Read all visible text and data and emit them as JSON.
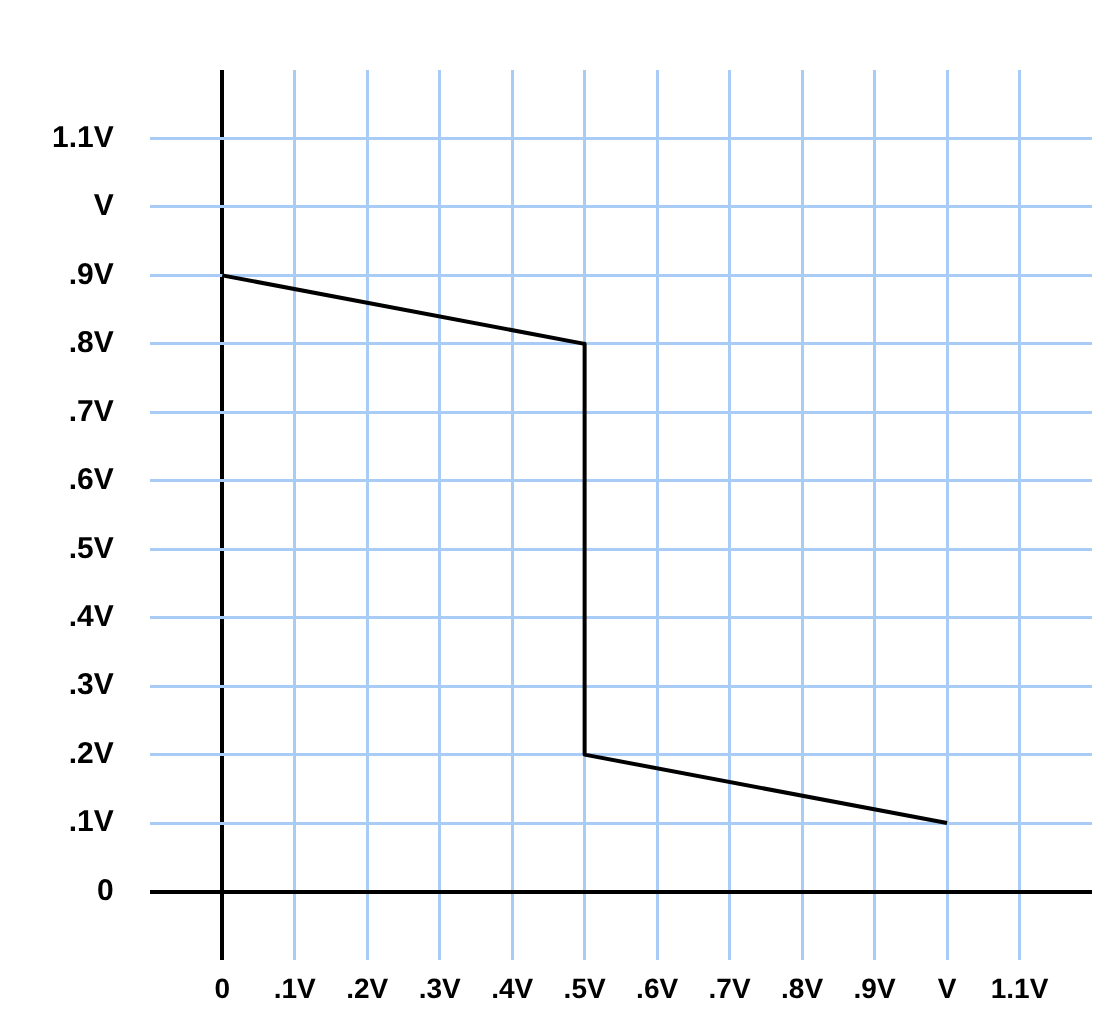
{
  "chart_data": {
    "type": "line",
    "x": [
      0,
      0.5,
      0.5,
      1
    ],
    "series": [
      {
        "color": "#000000",
        "values": [
          0.9,
          0.8,
          0.2,
          0.1
        ]
      }
    ],
    "xlim": [
      -0.1,
      1.2
    ],
    "ylim": [
      -0.1,
      1.2
    ],
    "xticks": [
      0,
      {
        "value": 0.1,
        "label": ".1V"
      },
      {
        "value": 0.2,
        "label": ".2V"
      },
      {
        "value": 0.3,
        "label": ".3V"
      },
      {
        "value": 0.4,
        "label": ".4V"
      },
      {
        "value": 0.5,
        "label": ".5V"
      },
      {
        "value": 0.6,
        "label": ".6V"
      },
      {
        "value": 0.7,
        "label": ".7V"
      },
      {
        "value": 0.8,
        "label": ".8V"
      },
      {
        "value": 0.9,
        "label": ".9V"
      },
      {
        "value": 1,
        "label": "V"
      },
      {
        "value": 1.1,
        "label": "1.1V"
      }
    ],
    "yticks": [
      0,
      {
        "value": 0.1,
        "label": ".1V"
      },
      {
        "value": 0.2,
        "label": ".2V"
      },
      {
        "value": 0.3,
        "label": ".3V"
      },
      {
        "value": 0.4,
        "label": ".4V"
      },
      {
        "value": 0.5,
        "label": ".5V"
      },
      {
        "value": 0.6,
        "label": ".6V"
      },
      {
        "value": 0.7,
        "label": ".7V"
      },
      {
        "value": 0.8,
        "label": ".8V"
      },
      {
        "value": 0.9,
        "label": ".9V"
      },
      {
        "value": 1,
        "label": "V"
      },
      {
        "value": 1.1,
        "label": "1.1V"
      }
    ],
    "grid": true,
    "marker": "none",
    "line_style": "solid",
    "legend": false
  }
}
